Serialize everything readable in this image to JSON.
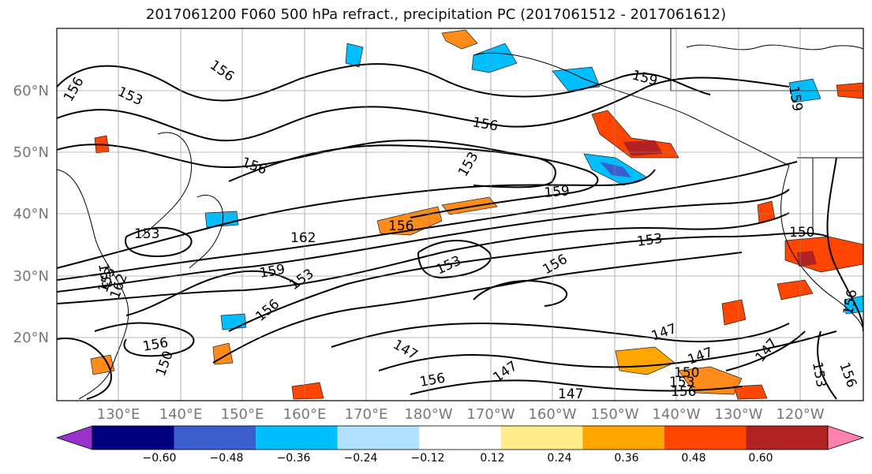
{
  "title": "2017061200 F060 500 hPa refract., precipitation PC (2017061512 - 2017061612)",
  "lat_labels": [
    "60°N",
    "50°N",
    "40°N",
    "30°N",
    "20°N"
  ],
  "lon_labels": [
    "130°E",
    "140°E",
    "150°E",
    "160°E",
    "170°E",
    "180°W",
    "170°W",
    "160°W",
    "150°W",
    "140°W",
    "130°W",
    "120°W"
  ],
  "contour_labels": [
    "156",
    "153",
    "156",
    "159",
    "156",
    "153",
    "156",
    "159",
    "153",
    "162",
    "156",
    "153",
    "159",
    "153",
    "156",
    "153",
    "156",
    "150",
    "153",
    "156",
    "147",
    "147",
    "147",
    "147",
    "150",
    "153",
    "156",
    "147",
    "147",
    "153",
    "156",
    "150",
    "156",
    "159",
    "153",
    "162",
    "156"
  ],
  "colorbar": {
    "ticks": [
      "−0.60",
      "−0.48",
      "−0.36",
      "−0.24",
      "−0.12",
      "0.12",
      "0.24",
      "0.36",
      "0.48",
      "0.60"
    ],
    "colors": [
      "#9932cc",
      "#000080",
      "#3a5fcd",
      "#00bfff",
      "#b0e2ff",
      "#ffffff",
      "#ffec8b",
      "#ffa500",
      "#ff4500",
      "#b22222",
      "#ff82ab"
    ]
  }
}
